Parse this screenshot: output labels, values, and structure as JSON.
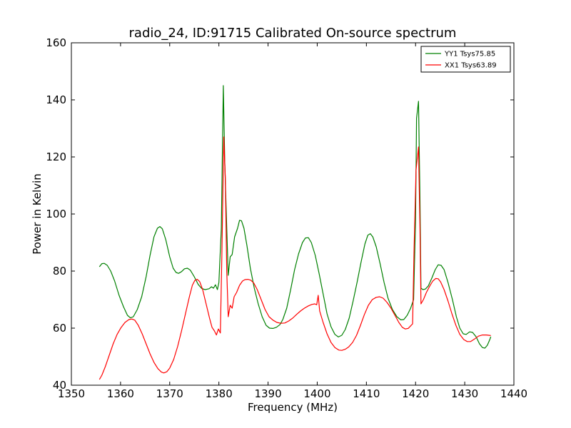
{
  "chart_data": {
    "type": "line",
    "title": "radio_24, ID:91715 Calibrated On-source spectrum",
    "xlabel": "Frequency (MHz)",
    "ylabel": "Power in Kelvin",
    "xlim": [
      1350,
      1440
    ],
    "ylim": [
      40,
      160
    ],
    "xticks": [
      1350,
      1360,
      1370,
      1380,
      1390,
      1400,
      1410,
      1420,
      1430,
      1440
    ],
    "yticks": [
      40,
      60,
      80,
      100,
      120,
      140,
      160
    ],
    "grid": false,
    "legend_position": "top-right",
    "series": [
      {
        "name": "YY1 Tsys75.85",
        "color": "#008000",
        "points": [
          [
            1355.7,
            81.5
          ],
          [
            1356.2,
            82.6
          ],
          [
            1356.7,
            82.7
          ],
          [
            1357.3,
            82.0
          ],
          [
            1358.0,
            80.0
          ],
          [
            1358.8,
            76.5
          ],
          [
            1359.7,
            71.5
          ],
          [
            1360.6,
            67.5
          ],
          [
            1361.4,
            64.5
          ],
          [
            1362.0,
            63.6
          ],
          [
            1362.6,
            64.0
          ],
          [
            1363.4,
            66.5
          ],
          [
            1364.3,
            71.0
          ],
          [
            1365.2,
            78.0
          ],
          [
            1366.0,
            85.5
          ],
          [
            1366.8,
            92.0
          ],
          [
            1367.5,
            95.0
          ],
          [
            1368.0,
            95.6
          ],
          [
            1368.5,
            94.8
          ],
          [
            1369.2,
            91.0
          ],
          [
            1370.0,
            85.0
          ],
          [
            1370.7,
            81.0
          ],
          [
            1371.3,
            79.5
          ],
          [
            1371.8,
            79.2
          ],
          [
            1372.4,
            79.8
          ],
          [
            1373.0,
            80.8
          ],
          [
            1373.6,
            81.0
          ],
          [
            1374.2,
            80.3
          ],
          [
            1375.0,
            78.0
          ],
          [
            1375.8,
            75.3
          ],
          [
            1376.5,
            73.9
          ],
          [
            1377.2,
            73.5
          ],
          [
            1378.0,
            73.8
          ],
          [
            1378.5,
            74.5
          ],
          [
            1378.9,
            74.0
          ],
          [
            1379.3,
            75.2
          ],
          [
            1379.7,
            73.5
          ],
          [
            1380.0,
            76.0
          ],
          [
            1380.5,
            95.0
          ],
          [
            1380.9,
            145.0
          ],
          [
            1381.2,
            118.0
          ],
          [
            1381.6,
            95.0
          ],
          [
            1381.9,
            78.5
          ],
          [
            1382.3,
            85.0
          ],
          [
            1382.7,
            85.8
          ],
          [
            1383.2,
            92.0
          ],
          [
            1383.8,
            95.0
          ],
          [
            1384.2,
            97.8
          ],
          [
            1384.6,
            97.6
          ],
          [
            1385.1,
            95.0
          ],
          [
            1385.7,
            89.0
          ],
          [
            1386.4,
            81.0
          ],
          [
            1387.2,
            74.0
          ],
          [
            1388.0,
            68.5
          ],
          [
            1388.8,
            64.0
          ],
          [
            1389.6,
            61.0
          ],
          [
            1390.3,
            60.0
          ],
          [
            1391.0,
            59.9
          ],
          [
            1391.7,
            60.3
          ],
          [
            1392.4,
            61.2
          ],
          [
            1393.0,
            63.0
          ],
          [
            1393.8,
            67.0
          ],
          [
            1394.6,
            73.5
          ],
          [
            1395.4,
            80.5
          ],
          [
            1396.2,
            86.0
          ],
          [
            1397.0,
            90.0
          ],
          [
            1397.6,
            91.6
          ],
          [
            1398.2,
            91.7
          ],
          [
            1398.8,
            90.0
          ],
          [
            1399.6,
            85.5
          ],
          [
            1400.4,
            79.0
          ],
          [
            1401.2,
            72.0
          ],
          [
            1402.0,
            65.0
          ],
          [
            1402.8,
            60.5
          ],
          [
            1403.6,
            57.8
          ],
          [
            1404.3,
            56.9
          ],
          [
            1405.0,
            57.5
          ],
          [
            1405.7,
            59.5
          ],
          [
            1406.5,
            63.5
          ],
          [
            1407.3,
            69.5
          ],
          [
            1408.1,
            76.0
          ],
          [
            1408.9,
            83.0
          ],
          [
            1409.7,
            89.5
          ],
          [
            1410.3,
            92.6
          ],
          [
            1410.8,
            93.1
          ],
          [
            1411.3,
            92.0
          ],
          [
            1412.0,
            88.5
          ],
          [
            1412.8,
            82.5
          ],
          [
            1413.6,
            76.0
          ],
          [
            1414.4,
            70.5
          ],
          [
            1415.3,
            66.5
          ],
          [
            1416.2,
            64.0
          ],
          [
            1417.0,
            62.9
          ],
          [
            1417.6,
            63.0
          ],
          [
            1418.3,
            64.5
          ],
          [
            1419.0,
            67.0
          ],
          [
            1419.6,
            70.0
          ],
          [
            1420.0,
            98.0
          ],
          [
            1420.2,
            133.5
          ],
          [
            1420.6,
            139.5
          ],
          [
            1420.9,
            105.0
          ],
          [
            1421.1,
            74.0
          ],
          [
            1421.5,
            73.5
          ],
          [
            1422.0,
            73.7
          ],
          [
            1422.6,
            74.8
          ],
          [
            1423.3,
            77.5
          ],
          [
            1424.0,
            80.5
          ],
          [
            1424.6,
            82.2
          ],
          [
            1425.2,
            82.0
          ],
          [
            1425.8,
            80.5
          ],
          [
            1426.6,
            76.0
          ],
          [
            1427.5,
            70.0
          ],
          [
            1428.3,
            64.0
          ],
          [
            1429.0,
            60.0
          ],
          [
            1429.7,
            58.0
          ],
          [
            1430.3,
            57.8
          ],
          [
            1431.0,
            58.7
          ],
          [
            1431.6,
            58.5
          ],
          [
            1432.3,
            57.0
          ],
          [
            1433.0,
            54.5
          ],
          [
            1433.6,
            53.2
          ],
          [
            1434.1,
            53.0
          ],
          [
            1434.6,
            54.0
          ],
          [
            1435.1,
            56.0
          ],
          [
            1435.3,
            57.0
          ]
        ]
      },
      {
        "name": "XX1 Tsys63.89",
        "color": "#ff0000",
        "points": [
          [
            1355.7,
            42.0
          ],
          [
            1356.2,
            43.5
          ],
          [
            1356.9,
            46.5
          ],
          [
            1357.7,
            50.5
          ],
          [
            1358.5,
            54.5
          ],
          [
            1359.3,
            57.8
          ],
          [
            1360.1,
            60.2
          ],
          [
            1360.9,
            62.0
          ],
          [
            1361.7,
            63.0
          ],
          [
            1362.3,
            63.2
          ],
          [
            1362.9,
            62.8
          ],
          [
            1363.6,
            61.0
          ],
          [
            1364.4,
            58.0
          ],
          [
            1365.2,
            54.5
          ],
          [
            1366.0,
            51.0
          ],
          [
            1366.8,
            48.0
          ],
          [
            1367.6,
            45.8
          ],
          [
            1368.3,
            44.6
          ],
          [
            1368.8,
            44.3
          ],
          [
            1369.4,
            44.7
          ],
          [
            1370.0,
            46.0
          ],
          [
            1370.8,
            49.0
          ],
          [
            1371.6,
            53.5
          ],
          [
            1372.4,
            59.0
          ],
          [
            1373.2,
            65.0
          ],
          [
            1374.0,
            71.0
          ],
          [
            1374.6,
            75.0
          ],
          [
            1375.1,
            76.7
          ],
          [
            1375.6,
            77.1
          ],
          [
            1376.1,
            76.3
          ],
          [
            1376.7,
            73.5
          ],
          [
            1377.4,
            68.5
          ],
          [
            1378.1,
            63.5
          ],
          [
            1378.6,
            60.3
          ],
          [
            1379.1,
            59.0
          ],
          [
            1379.5,
            57.6
          ],
          [
            1379.9,
            59.7
          ],
          [
            1380.3,
            58.3
          ],
          [
            1380.6,
            85.0
          ],
          [
            1381.0,
            127.0
          ],
          [
            1381.3,
            113.0
          ],
          [
            1381.6,
            80.0
          ],
          [
            1381.9,
            64.0
          ],
          [
            1382.3,
            68.0
          ],
          [
            1382.7,
            67.0
          ],
          [
            1383.1,
            71.0
          ],
          [
            1383.6,
            72.5
          ],
          [
            1384.2,
            75.0
          ],
          [
            1384.8,
            76.5
          ],
          [
            1385.3,
            77.0
          ],
          [
            1385.9,
            77.1
          ],
          [
            1386.5,
            76.8
          ],
          [
            1387.1,
            75.8
          ],
          [
            1387.8,
            73.5
          ],
          [
            1388.6,
            70.0
          ],
          [
            1389.4,
            66.5
          ],
          [
            1390.2,
            64.0
          ],
          [
            1391.0,
            62.8
          ],
          [
            1391.8,
            62.0
          ],
          [
            1392.6,
            61.7
          ],
          [
            1393.4,
            61.8
          ],
          [
            1394.2,
            62.5
          ],
          [
            1395.0,
            63.5
          ],
          [
            1395.8,
            64.8
          ],
          [
            1396.6,
            66.0
          ],
          [
            1397.4,
            67.0
          ],
          [
            1398.2,
            67.8
          ],
          [
            1398.9,
            68.3
          ],
          [
            1399.5,
            68.5
          ],
          [
            1399.9,
            68.2
          ],
          [
            1400.2,
            71.5
          ],
          [
            1400.5,
            66.0
          ],
          [
            1401.2,
            62.0
          ],
          [
            1402.0,
            58.0
          ],
          [
            1402.8,
            55.0
          ],
          [
            1403.6,
            53.2
          ],
          [
            1404.4,
            52.3
          ],
          [
            1405.0,
            52.2
          ],
          [
            1405.7,
            52.6
          ],
          [
            1406.4,
            53.4
          ],
          [
            1407.2,
            55.0
          ],
          [
            1408.0,
            57.5
          ],
          [
            1408.8,
            61.0
          ],
          [
            1409.6,
            64.8
          ],
          [
            1410.4,
            68.0
          ],
          [
            1411.2,
            70.0
          ],
          [
            1412.0,
            70.8
          ],
          [
            1412.7,
            71.0
          ],
          [
            1413.4,
            70.5
          ],
          [
            1414.2,
            69.0
          ],
          [
            1415.0,
            67.0
          ],
          [
            1415.8,
            64.5
          ],
          [
            1416.6,
            62.0
          ],
          [
            1417.3,
            60.3
          ],
          [
            1417.9,
            59.7
          ],
          [
            1418.5,
            59.9
          ],
          [
            1419.0,
            60.8
          ],
          [
            1419.4,
            61.5
          ],
          [
            1419.7,
            88.0
          ],
          [
            1420.1,
            115.5
          ],
          [
            1420.6,
            123.5
          ],
          [
            1420.9,
            95.0
          ],
          [
            1421.1,
            68.5
          ],
          [
            1421.6,
            70.0
          ],
          [
            1422.2,
            72.5
          ],
          [
            1422.9,
            74.8
          ],
          [
            1423.5,
            76.5
          ],
          [
            1424.1,
            77.4
          ],
          [
            1424.6,
            77.3
          ],
          [
            1425.1,
            76.2
          ],
          [
            1425.8,
            73.5
          ],
          [
            1426.6,
            69.5
          ],
          [
            1427.4,
            65.0
          ],
          [
            1428.2,
            61.0
          ],
          [
            1429.0,
            57.8
          ],
          [
            1429.8,
            56.0
          ],
          [
            1430.5,
            55.3
          ],
          [
            1431.2,
            55.3
          ],
          [
            1432.0,
            56.2
          ],
          [
            1432.8,
            57.2
          ],
          [
            1433.6,
            57.6
          ],
          [
            1434.4,
            57.6
          ],
          [
            1435.3,
            57.4
          ]
        ]
      }
    ]
  }
}
